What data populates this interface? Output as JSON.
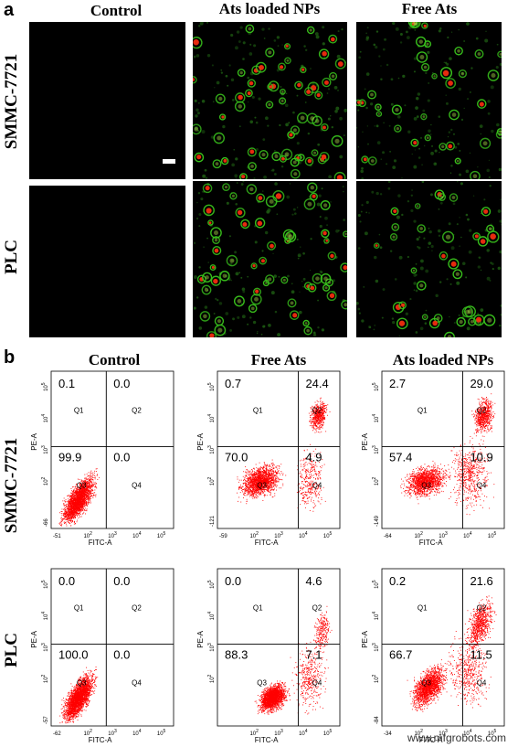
{
  "figure": {
    "panel_a_label": "a",
    "panel_b_label": "b",
    "panel_a": {
      "columns": [
        "Control",
        "Ats loaded NPs",
        "Free Ats"
      ],
      "rows": [
        "SMMC-7721",
        "PLC"
      ]
    },
    "panel_b": {
      "columns": [
        "Control",
        "Free Ats",
        "Ats loaded NPs"
      ],
      "rows": [
        "SMMC-7721",
        "PLC"
      ],
      "x_axis_label": "FITC-A",
      "y_axis_label": "PE-A",
      "quadrant_labels": [
        "Q1",
        "Q2",
        "Q3",
        "Q4"
      ],
      "plots": [
        {
          "row": "SMMC-7721",
          "column": "Control",
          "q1": "0.1",
          "q2": "0.0",
          "q3": "99.9",
          "q4": "0.0",
          "x_min_tick": "-51",
          "y_min_tick": "-66"
        },
        {
          "row": "SMMC-7721",
          "column": "Free Ats",
          "q1": "0.7",
          "q2": "24.4",
          "q3": "70.0",
          "q4": "4.9",
          "x_min_tick": "-59",
          "y_min_tick": "-121"
        },
        {
          "row": "SMMC-7721",
          "column": "Ats loaded NPs",
          "q1": "2.7",
          "q2": "29.0",
          "q3": "57.4",
          "q4": "10.9",
          "x_min_tick": "-64",
          "y_min_tick": "-149"
        },
        {
          "row": "PLC",
          "column": "Control",
          "q1": "0.0",
          "q2": "0.0",
          "q3": "100.0",
          "q4": "0.0",
          "x_min_tick": "-62",
          "y_min_tick": "-57"
        },
        {
          "row": "PLC",
          "column": "Free Ats",
          "q1": "0.0",
          "q2": "4.6",
          "q3": "88.3",
          "q4": "7.1",
          "x_min_tick": "",
          "y_min_tick": ""
        },
        {
          "row": "PLC",
          "column": "Ats loaded NPs",
          "q1": "0.2",
          "q2": "21.6",
          "q3": "66.7",
          "q4": "11.5",
          "x_min_tick": "-34",
          "y_min_tick": "-84"
        }
      ]
    },
    "watermark": "www.mfgrobots.com",
    "colors": {
      "dots": "#ff0000",
      "green_fluor": "#39c21c",
      "red_fluor": "#ff3010"
    }
  }
}
